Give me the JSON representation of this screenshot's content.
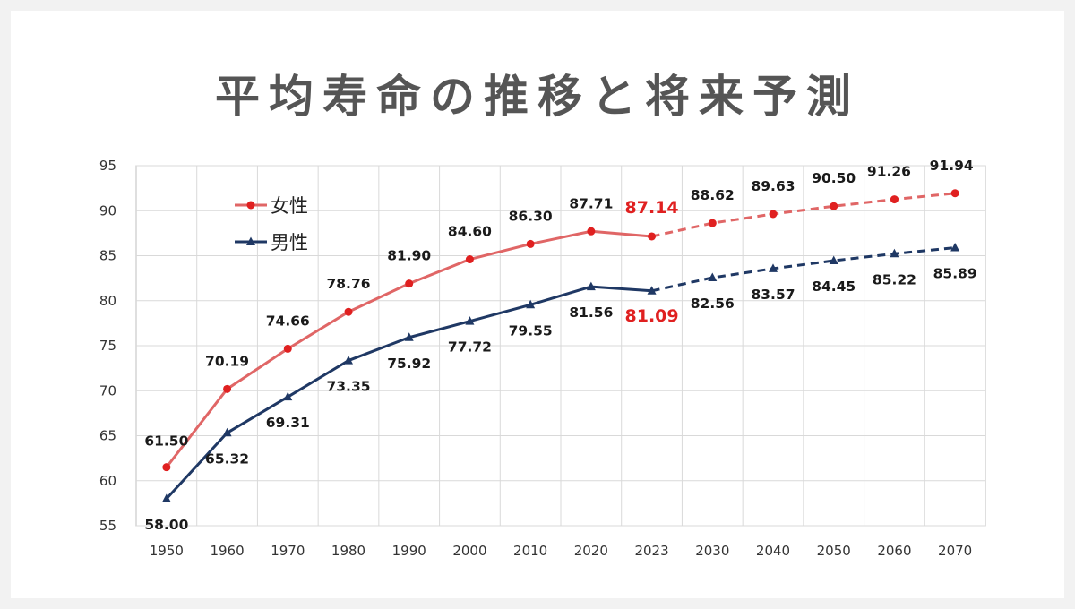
{
  "title": "平均寿命の推移と将来予測",
  "chart_data": {
    "type": "line",
    "title": "平均寿命の推移と将来予測",
    "categories": [
      "1950",
      "1960",
      "1970",
      "1980",
      "1990",
      "2000",
      "2010",
      "2020",
      "2023",
      "2030",
      "2040",
      "2050",
      "2060",
      "2070"
    ],
    "ylim": [
      55,
      95
    ],
    "yticks": [
      55,
      60,
      65,
      70,
      75,
      80,
      85,
      90,
      95
    ],
    "grid": true,
    "legend_position": "top-left",
    "series": [
      {
        "name": "女性",
        "color": "#e06666",
        "marker": "circle",
        "marker_color": "#e02020",
        "values": [
          61.5,
          70.19,
          74.66,
          78.76,
          81.9,
          84.6,
          86.3,
          87.71,
          87.14,
          88.62,
          89.63,
          90.5,
          91.26,
          91.94
        ],
        "labels": [
          "61.50",
          "70.19",
          "74.66",
          "78.76",
          "81.90",
          "84.60",
          "86.30",
          "87.71",
          "87.14",
          "88.62",
          "89.63",
          "90.50",
          "91.26",
          "91.94"
        ],
        "projected_from_index": 8,
        "highlight_index": 8,
        "highlight_color": "#e02020"
      },
      {
        "name": "男性",
        "color": "#1f3864",
        "marker": "triangle",
        "marker_color": "#1f3864",
        "values": [
          58.0,
          65.32,
          69.31,
          73.35,
          75.92,
          77.72,
          79.55,
          81.56,
          81.09,
          82.56,
          83.57,
          84.45,
          85.22,
          85.89
        ],
        "labels": [
          "58.00",
          "65.32",
          "69.31",
          "73.35",
          "75.92",
          "77.72",
          "79.55",
          "81.56",
          "81.09",
          "82.56",
          "83.57",
          "84.45",
          "85.22",
          "85.89"
        ],
        "projected_from_index": 8,
        "highlight_index": 8,
        "highlight_color": "#e02020"
      }
    ]
  }
}
